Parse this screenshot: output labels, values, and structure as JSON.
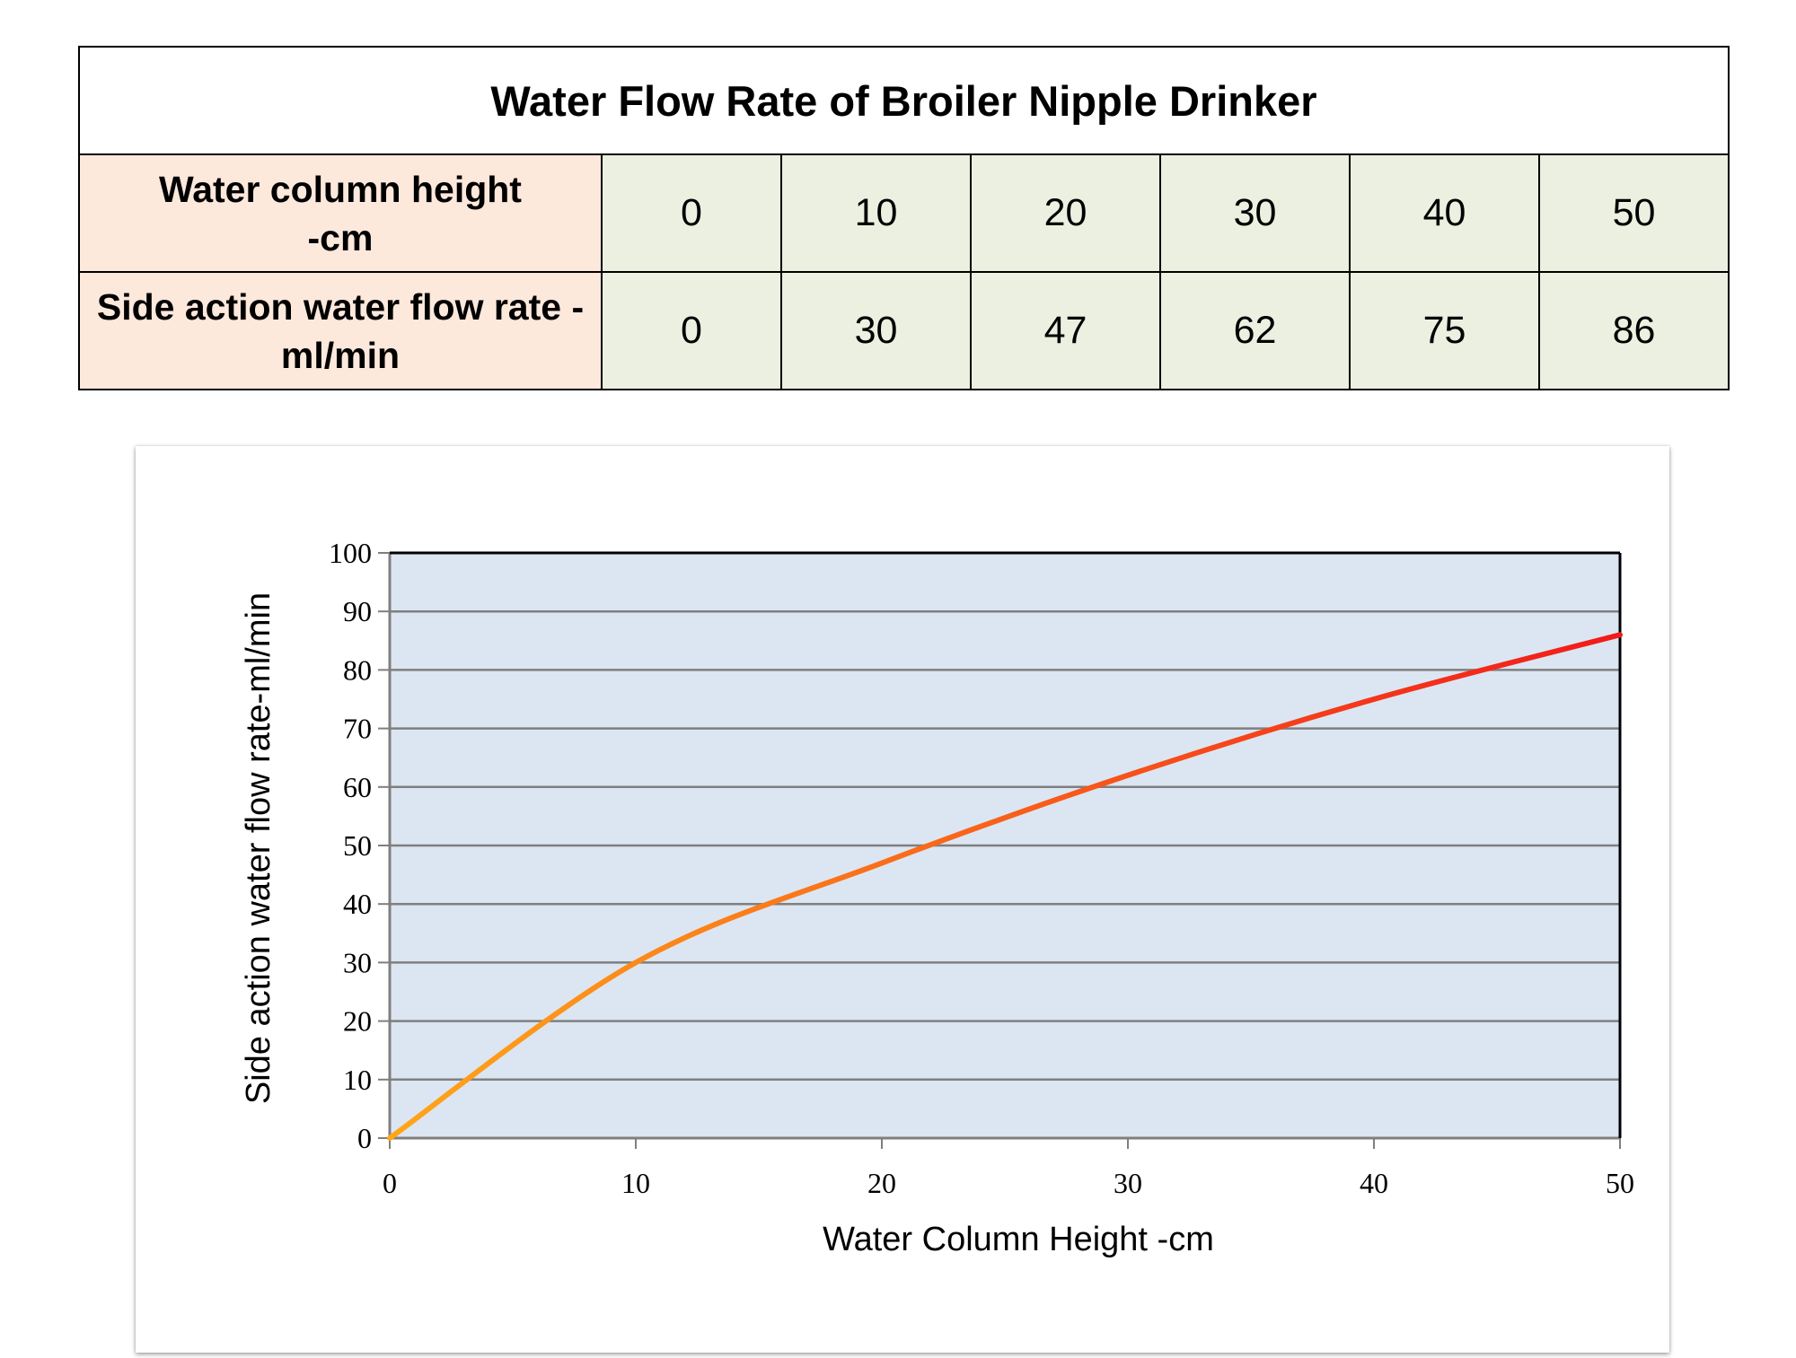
{
  "table": {
    "title": "Water Flow Rate of Broiler Nipple Drinker",
    "row1": {
      "label_line1": "Water column height",
      "label_line2": "-cm",
      "values": [
        "0",
        "10",
        "20",
        "30",
        "40",
        "50"
      ]
    },
    "row2": {
      "label_line1": "Side action water flow rate -",
      "label_line2": "ml/min",
      "values": [
        "0",
        "30",
        "47",
        "62",
        "75",
        "86"
      ]
    }
  },
  "chart_data": {
    "type": "line",
    "title": "",
    "xlabel": "Water Column Height -cm",
    "ylabel": "Side action water flow rate-ml/min",
    "x": [
      0,
      10,
      20,
      30,
      40,
      50
    ],
    "xlim": [
      0,
      50
    ],
    "ylim": [
      0,
      100
    ],
    "x_ticks": [
      0,
      10,
      20,
      30,
      40,
      50
    ],
    "y_ticks": [
      0,
      10,
      20,
      30,
      40,
      50,
      60,
      70,
      80,
      90,
      100
    ],
    "grid": "horizontal",
    "legend": "none",
    "series": [
      {
        "values": [
          0,
          30,
          47,
          62,
          75,
          86
        ],
        "color_start": "#ffa61a",
        "color_end": "#f21a1a"
      }
    ],
    "plot_background": "#dce6f2",
    "grid_color": "#7f7f7f"
  }
}
